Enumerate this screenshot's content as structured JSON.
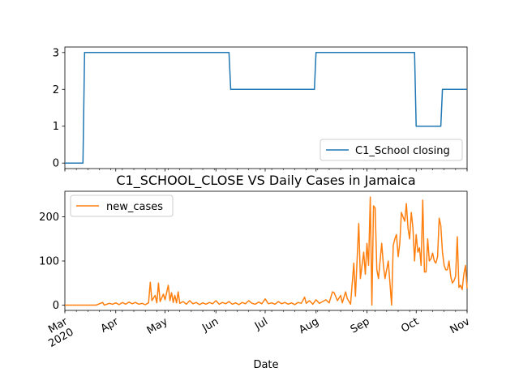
{
  "chart_data": [
    {
      "type": "line",
      "title": "",
      "xlabel": "",
      "ylabel": "",
      "xlim": [
        "2020-03-01",
        "2020-11-01"
      ],
      "ylim": [
        -0.15,
        3.15
      ],
      "yticks": [
        "0",
        "1",
        "2",
        "3"
      ],
      "legend": {
        "placement": "lower-right"
      },
      "grid": false,
      "series": [
        {
          "name": "C1_School closing",
          "color": "#1f77b4",
          "points": [
            [
              "2020-03-01",
              0
            ],
            [
              "2020-03-12",
              0
            ],
            [
              "2020-03-13",
              3
            ],
            [
              "2020-06-09",
              3
            ],
            [
              "2020-06-10",
              2
            ],
            [
              "2020-07-31",
              2
            ],
            [
              "2020-08-01",
              3
            ],
            [
              "2020-09-30",
              3
            ],
            [
              "2020-10-01",
              1
            ],
            [
              "2020-10-16",
              1
            ],
            [
              "2020-10-17",
              2
            ],
            [
              "2020-11-01",
              2
            ]
          ]
        }
      ]
    },
    {
      "type": "line",
      "title": "C1_SCHOOL_CLOSE VS Daily Cases in Jamaica",
      "xlabel": "Date",
      "ylabel": "",
      "xlim": [
        "2020-03-01",
        "2020-11-01"
      ],
      "ylim": [
        -12,
        258
      ],
      "xtick_labels": [
        "Mar\n2020",
        "Apr",
        "May",
        "Jun",
        "Jul",
        "Aug",
        "Sep",
        "Oct",
        "Nov"
      ],
      "yticks": [
        "0",
        "100",
        "200"
      ],
      "legend": {
        "placement": "top-left"
      },
      "grid": false,
      "series": [
        {
          "name": "new_cases",
          "color": "#ff7f0e",
          "points": [
            [
              "2020-03-01",
              0
            ],
            [
              "2020-03-10",
              0
            ],
            [
              "2020-03-15",
              0
            ],
            [
              "2020-03-20",
              0
            ],
            [
              "2020-03-24",
              6
            ],
            [
              "2020-03-25",
              0
            ],
            [
              "2020-03-28",
              4
            ],
            [
              "2020-03-30",
              2
            ],
            [
              "2020-04-01",
              5
            ],
            [
              "2020-04-03",
              1
            ],
            [
              "2020-04-05",
              6
            ],
            [
              "2020-04-07",
              2
            ],
            [
              "2020-04-09",
              7
            ],
            [
              "2020-04-11",
              3
            ],
            [
              "2020-04-13",
              6
            ],
            [
              "2020-04-15",
              2
            ],
            [
              "2020-04-17",
              4
            ],
            [
              "2020-04-19",
              1
            ],
            [
              "2020-04-21",
              5
            ],
            [
              "2020-04-22",
              52
            ],
            [
              "2020-04-23",
              10
            ],
            [
              "2020-04-25",
              22
            ],
            [
              "2020-04-26",
              5
            ],
            [
              "2020-04-27",
              50
            ],
            [
              "2020-04-28",
              8
            ],
            [
              "2020-04-30",
              25
            ],
            [
              "2020-05-01",
              12
            ],
            [
              "2020-05-03",
              45
            ],
            [
              "2020-05-04",
              10
            ],
            [
              "2020-05-05",
              28
            ],
            [
              "2020-05-06",
              6
            ],
            [
              "2020-05-07",
              22
            ],
            [
              "2020-05-08",
              5
            ],
            [
              "2020-05-09",
              30
            ],
            [
              "2020-05-10",
              4
            ],
            [
              "2020-05-12",
              8
            ],
            [
              "2020-05-14",
              2
            ],
            [
              "2020-05-16",
              10
            ],
            [
              "2020-05-18",
              3
            ],
            [
              "2020-05-20",
              6
            ],
            [
              "2020-05-22",
              1
            ],
            [
              "2020-05-24",
              5
            ],
            [
              "2020-05-26",
              2
            ],
            [
              "2020-05-28",
              6
            ],
            [
              "2020-05-30",
              3
            ],
            [
              "2020-06-01",
              10
            ],
            [
              "2020-06-03",
              2
            ],
            [
              "2020-06-05",
              6
            ],
            [
              "2020-06-07",
              3
            ],
            [
              "2020-06-09",
              8
            ],
            [
              "2020-06-11",
              2
            ],
            [
              "2020-06-13",
              5
            ],
            [
              "2020-06-15",
              1
            ],
            [
              "2020-06-17",
              6
            ],
            [
              "2020-06-19",
              3
            ],
            [
              "2020-06-21",
              10
            ],
            [
              "2020-06-23",
              4
            ],
            [
              "2020-06-25",
              2
            ],
            [
              "2020-06-27",
              7
            ],
            [
              "2020-06-29",
              3
            ],
            [
              "2020-07-01",
              14
            ],
            [
              "2020-07-03",
              3
            ],
            [
              "2020-07-05",
              5
            ],
            [
              "2020-07-07",
              2
            ],
            [
              "2020-07-09",
              8
            ],
            [
              "2020-07-11",
              3
            ],
            [
              "2020-07-13",
              6
            ],
            [
              "2020-07-15",
              2
            ],
            [
              "2020-07-17",
              5
            ],
            [
              "2020-07-19",
              1
            ],
            [
              "2020-07-21",
              6
            ],
            [
              "2020-07-23",
              4
            ],
            [
              "2020-07-25",
              18
            ],
            [
              "2020-07-26",
              4
            ],
            [
              "2020-07-28",
              10
            ],
            [
              "2020-07-30",
              2
            ],
            [
              "2020-08-01",
              12
            ],
            [
              "2020-08-03",
              4
            ],
            [
              "2020-08-05",
              8
            ],
            [
              "2020-08-07",
              12
            ],
            [
              "2020-08-09",
              5
            ],
            [
              "2020-08-11",
              30
            ],
            [
              "2020-08-12",
              28
            ],
            [
              "2020-08-14",
              10
            ],
            [
              "2020-08-16",
              22
            ],
            [
              "2020-08-17",
              5
            ],
            [
              "2020-08-19",
              30
            ],
            [
              "2020-08-20",
              15
            ],
            [
              "2020-08-22",
              2
            ],
            [
              "2020-08-24",
              95
            ],
            [
              "2020-08-25",
              20
            ],
            [
              "2020-08-27",
              185
            ],
            [
              "2020-08-28",
              60
            ],
            [
              "2020-08-30",
              120
            ],
            [
              "2020-08-31",
              70
            ],
            [
              "2020-09-01",
              140
            ],
            [
              "2020-09-02",
              90
            ],
            [
              "2020-09-03",
              245
            ],
            [
              "2020-09-04",
              0
            ],
            [
              "2020-09-05",
              225
            ],
            [
              "2020-09-06",
              220
            ],
            [
              "2020-09-07",
              80
            ],
            [
              "2020-09-08",
              60
            ],
            [
              "2020-09-10",
              140
            ],
            [
              "2020-09-11",
              90
            ],
            [
              "2020-09-12",
              60
            ],
            [
              "2020-09-14",
              100
            ],
            [
              "2020-09-16",
              0
            ],
            [
              "2020-09-17",
              135
            ],
            [
              "2020-09-18",
              150
            ],
            [
              "2020-09-19",
              160
            ],
            [
              "2020-09-20",
              110
            ],
            [
              "2020-09-21",
              140
            ],
            [
              "2020-09-22",
              210
            ],
            [
              "2020-09-23",
              200
            ],
            [
              "2020-09-24",
              190
            ],
            [
              "2020-09-25",
              230
            ],
            [
              "2020-09-26",
              175
            ],
            [
              "2020-09-27",
              150
            ],
            [
              "2020-09-28",
              210
            ],
            [
              "2020-09-29",
              175
            ],
            [
              "2020-09-30",
              100
            ],
            [
              "2020-10-01",
              160
            ],
            [
              "2020-10-02",
              120
            ],
            [
              "2020-10-03",
              130
            ],
            [
              "2020-10-04",
              90
            ],
            [
              "2020-10-05",
              238
            ],
            [
              "2020-10-06",
              75
            ],
            [
              "2020-10-07",
              75
            ],
            [
              "2020-10-08",
              150
            ],
            [
              "2020-10-09",
              100
            ],
            [
              "2020-10-10",
              105
            ],
            [
              "2020-10-11",
              118
            ],
            [
              "2020-10-12",
              100
            ],
            [
              "2020-10-13",
              95
            ],
            [
              "2020-10-14",
              110
            ],
            [
              "2020-10-15",
              197
            ],
            [
              "2020-10-16",
              180
            ],
            [
              "2020-10-17",
              120
            ],
            [
              "2020-10-18",
              90
            ],
            [
              "2020-10-19",
              80
            ],
            [
              "2020-10-20",
              80
            ],
            [
              "2020-10-21",
              100
            ],
            [
              "2020-10-22",
              65
            ],
            [
              "2020-10-23",
              50
            ],
            [
              "2020-10-24",
              55
            ],
            [
              "2020-10-25",
              65
            ],
            [
              "2020-10-26",
              155
            ],
            [
              "2020-10-27",
              40
            ],
            [
              "2020-10-28",
              45
            ],
            [
              "2020-10-29",
              35
            ],
            [
              "2020-10-30",
              70
            ],
            [
              "2020-10-31",
              90
            ],
            [
              "2020-11-01",
              38
            ]
          ]
        }
      ]
    }
  ]
}
